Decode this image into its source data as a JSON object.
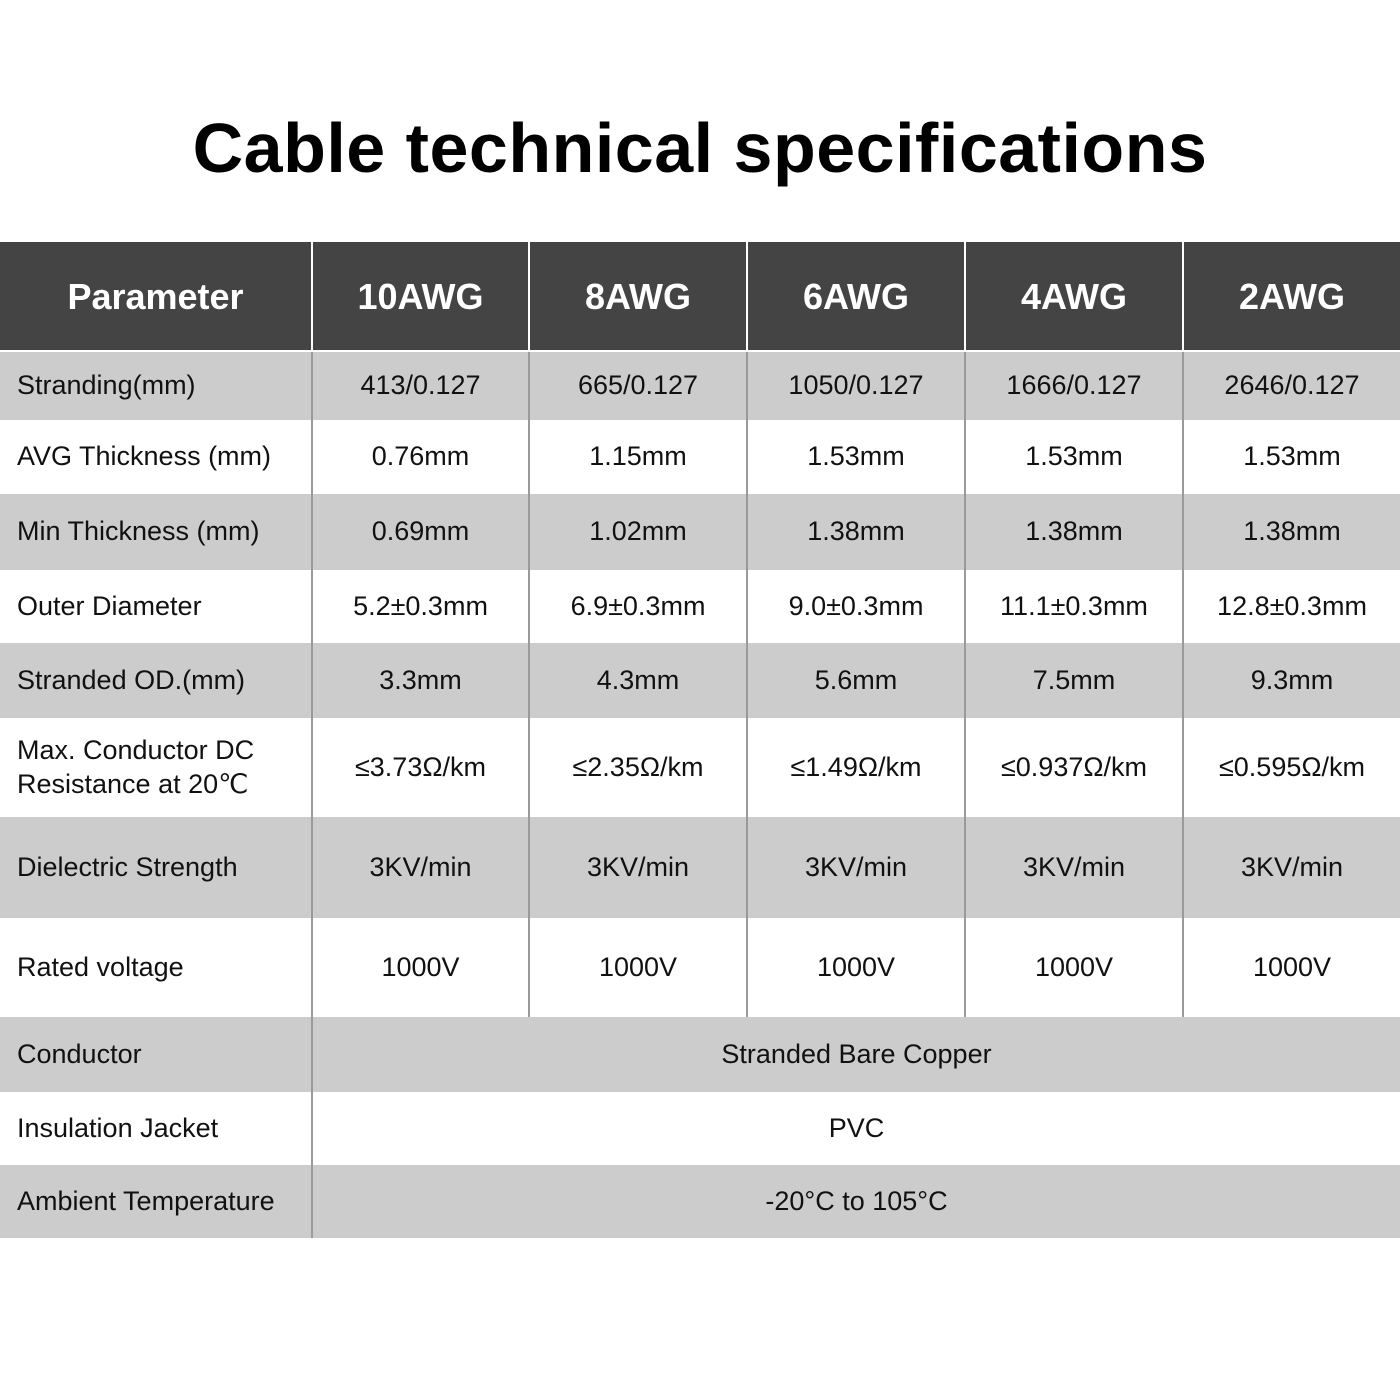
{
  "title": "Cable technical specifications",
  "colors": {
    "header_bg": "#444444",
    "header_text": "#ffffff",
    "row_gray": "#cccccc",
    "row_white": "#ffffff"
  },
  "table": {
    "headers": [
      "Parameter",
      "10AWG",
      "8AWG",
      "6AWG",
      "4AWG",
      "2AWG"
    ],
    "rows": [
      {
        "label": "Stranding(mm)",
        "values": [
          "413/0.127",
          "665/0.127",
          "1050/0.127",
          "1666/0.127",
          "2646/0.127"
        ]
      },
      {
        "label": "AVG Thickness (mm)",
        "values": [
          "0.76mm",
          "1.15mm",
          "1.53mm",
          "1.53mm",
          "1.53mm"
        ]
      },
      {
        "label": "Min Thickness (mm)",
        "values": [
          "0.69mm",
          "1.02mm",
          "1.38mm",
          "1.38mm",
          "1.38mm"
        ]
      },
      {
        "label": "Outer Diameter",
        "values": [
          "5.2±0.3mm",
          "6.9±0.3mm",
          "9.0±0.3mm",
          "11.1±0.3mm",
          "12.8±0.3mm"
        ]
      },
      {
        "label": "Stranded OD.(mm)",
        "values": [
          "3.3mm",
          "4.3mm",
          "5.6mm",
          "7.5mm",
          "9.3mm"
        ]
      },
      {
        "label": "Max. Conductor DC Resistance at 20℃",
        "values": [
          "≤3.73Ω/km",
          "≤2.35Ω/km",
          "≤1.49Ω/km",
          "≤0.937Ω/km",
          "≤0.595Ω/km"
        ]
      },
      {
        "label": "Dielectric Strength",
        "values": [
          "3KV/min",
          "3KV/min",
          "3KV/min",
          "3KV/min",
          "3KV/min"
        ]
      },
      {
        "label": "Rated voltage",
        "values": [
          "1000V",
          "1000V",
          "1000V",
          "1000V",
          "1000V"
        ]
      },
      {
        "label": "Conductor",
        "span_value": "Stranded Bare Copper"
      },
      {
        "label": "Insulation Jacket",
        "span_value": "PVC"
      },
      {
        "label": "Ambient Temperature",
        "span_value": "-20°C to 105°C"
      }
    ]
  }
}
